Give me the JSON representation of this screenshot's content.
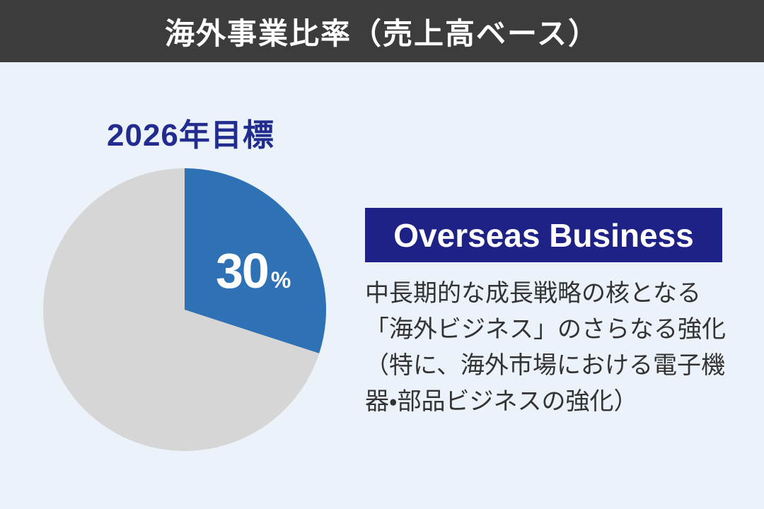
{
  "header": {
    "title": "海外事業比率（売上高ベース）"
  },
  "main": {
    "target_label": "2026年目標",
    "pie_value_unit": "%"
  },
  "panel": {
    "title": "Overseas Business",
    "description_lines": [
      "中長期的な成長戦略の核となる",
      "「海外ビジネス」のさらなる強化",
      "（特に、海外市場における電子機",
      "器・部品ビジネスの強化）"
    ]
  },
  "colors": {
    "header_background": "#3c3c3c",
    "page_background": "#ebf2fa",
    "target_label_navy": "#222c8e",
    "banner_background": "#1e2287",
    "pie_overseas_blue": "#2e72b5",
    "pie_remainder_gray": "#d6d6d6",
    "description_text": "#333333",
    "title_text": "#ffffff"
  },
  "chart_data": {
    "type": "pie",
    "title": "海外事業比率（売上高ベース）",
    "subtitle": "2026年目標",
    "segments": [
      {
        "label": "Overseas Business",
        "value_pct": 30,
        "color": "#2e72b5",
        "data_label": "30%"
      },
      {
        "label": "",
        "value_pct": 70,
        "color": "#d6d6d6",
        "data_label": ""
      }
    ],
    "start_angle_deg": 0,
    "direction": "clockwise",
    "legend": "none"
  }
}
